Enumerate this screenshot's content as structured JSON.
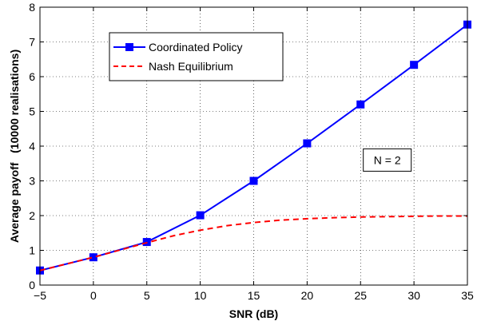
{
  "chart_data": {
    "type": "line",
    "xlabel": "SNR (dB)",
    "ylabel": "Average payoff   (10000 realisations)",
    "xlim": [
      -5,
      35
    ],
    "ylim": [
      0,
      8
    ],
    "xticks": [
      -5,
      0,
      5,
      10,
      15,
      20,
      25,
      30,
      35
    ],
    "yticks": [
      0,
      1,
      2,
      3,
      4,
      5,
      6,
      7,
      8
    ],
    "xtick_labels": [
      "−5",
      "0",
      "5",
      "10",
      "15",
      "20",
      "25",
      "30",
      "35"
    ],
    "ytick_labels": [
      "0",
      "1",
      "2",
      "3",
      "4",
      "5",
      "6",
      "7",
      "8"
    ],
    "grid": true,
    "legend_position": "top-left",
    "series": [
      {
        "name": "Coordinated Policy",
        "color": "#0000ff",
        "style": "solid",
        "marker": "square",
        "x": [
          -5,
          0,
          5,
          10,
          15,
          20,
          25,
          30,
          35
        ],
        "y": [
          0.42,
          0.8,
          1.24,
          2.01,
          3.0,
          4.08,
          5.2,
          6.34,
          7.5
        ]
      },
      {
        "name": "Nash Equilibrium",
        "color": "#ff0000",
        "style": "dashed",
        "marker": "none",
        "x": [
          -5,
          0,
          5,
          7.5,
          10,
          12.5,
          15,
          17.5,
          20,
          22.5,
          25,
          27.5,
          30,
          32.5,
          35
        ],
        "y": [
          0.42,
          0.8,
          1.22,
          1.42,
          1.58,
          1.71,
          1.8,
          1.87,
          1.91,
          1.94,
          1.96,
          1.97,
          1.98,
          1.99,
          1.99
        ]
      }
    ],
    "annotation": {
      "text": "N = 2",
      "x": 27.5,
      "y": 3.6
    }
  }
}
